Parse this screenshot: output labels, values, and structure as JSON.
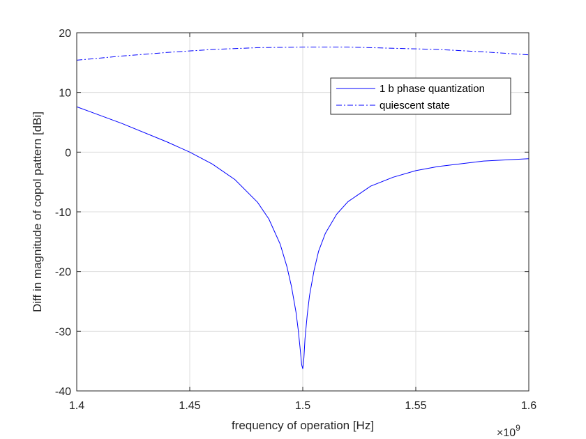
{
  "chart_data": {
    "type": "line",
    "xlabel": "frequency of operation [Hz]",
    "ylabel": "Diff in magnitude of copol pattern [dBi]",
    "x_exponent_label": "×10",
    "x_exponent": "9",
    "xlim": [
      1.4,
      1.6
    ],
    "ylim": [
      -40,
      20
    ],
    "x_scale": 1000000000,
    "xticks": [
      1.4,
      1.45,
      1.5,
      1.55,
      1.6
    ],
    "xtick_labels": [
      "1.4",
      "1.45",
      "1.5",
      "1.55",
      "1.6"
    ],
    "yticks": [
      -40,
      -30,
      -20,
      -10,
      0,
      10,
      20
    ],
    "ytick_labels": [
      "-40",
      "-30",
      "-20",
      "-10",
      "0",
      "10",
      "20"
    ],
    "grid": true,
    "legend_position": "upper right",
    "series": [
      {
        "name": "1 b phase quantization",
        "color": "#0000ff",
        "style": "solid",
        "x": [
          1.4,
          1.42,
          1.44,
          1.45,
          1.46,
          1.47,
          1.48,
          1.485,
          1.49,
          1.493,
          1.495,
          1.497,
          1.498,
          1.499,
          1.4995,
          1.5,
          1.5005,
          1.501,
          1.502,
          1.503,
          1.505,
          1.507,
          1.51,
          1.515,
          1.52,
          1.53,
          1.54,
          1.55,
          1.56,
          1.58,
          1.6
        ],
        "y": [
          7.6,
          4.8,
          1.7,
          0.0,
          -2.0,
          -4.6,
          -8.4,
          -11.2,
          -15.4,
          -19.2,
          -22.5,
          -26.8,
          -29.8,
          -33.5,
          -35.6,
          -36.3,
          -34.5,
          -31.2,
          -27.2,
          -24.0,
          -19.8,
          -16.6,
          -13.6,
          -10.4,
          -8.3,
          -5.7,
          -4.2,
          -3.1,
          -2.4,
          -1.5,
          -1.1
        ]
      },
      {
        "name": "quiescent state",
        "color": "#0000ff",
        "style": "dashdot",
        "x": [
          1.4,
          1.42,
          1.44,
          1.46,
          1.48,
          1.5,
          1.52,
          1.54,
          1.56,
          1.58,
          1.6
        ],
        "y": [
          15.4,
          16.1,
          16.7,
          17.2,
          17.5,
          17.6,
          17.6,
          17.4,
          17.2,
          16.8,
          16.3
        ]
      }
    ]
  }
}
